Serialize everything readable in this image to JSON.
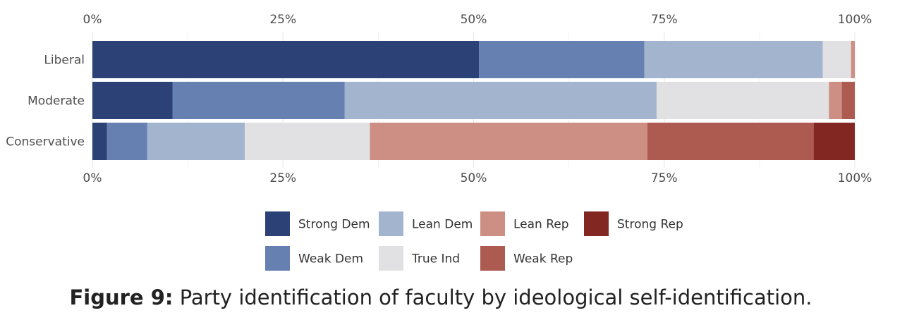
{
  "chart_data": {
    "type": "bar",
    "orientation": "horizontal",
    "stacked": true,
    "percent": true,
    "categories": [
      "Liberal",
      "Moderate",
      "Conservative"
    ],
    "series": [
      {
        "name": "Strong Dem",
        "color": "#2c4176",
        "values": [
          50.7,
          10.5,
          1.9
        ]
      },
      {
        "name": "Weak Dem",
        "color": "#6580b1",
        "values": [
          21.7,
          22.6,
          5.3
        ]
      },
      {
        "name": "Lean Dem",
        "color": "#a3b4cf",
        "values": [
          23.4,
          40.9,
          12.8
        ]
      },
      {
        "name": "True Ind",
        "color": "#e1e1e3",
        "values": [
          3.7,
          22.6,
          16.4
        ]
      },
      {
        "name": "Lean Rep",
        "color": "#cd8f84",
        "values": [
          0.5,
          1.7,
          36.4
        ]
      },
      {
        "name": "Weak Rep",
        "color": "#ad5a51",
        "values": [
          0.0,
          1.7,
          21.8
        ]
      },
      {
        "name": "Strong Rep",
        "color": "#832722",
        "values": [
          0.0,
          0.0,
          5.4
        ]
      }
    ],
    "xlim": [
      0,
      100
    ],
    "ticks": [
      "0%",
      "25%",
      "50%",
      "75%",
      "100%"
    ],
    "grid": true,
    "legend_position": "bottom"
  },
  "caption": {
    "label": "Figure 9:",
    "text": "Party identification of faculty by ideological self-identification."
  }
}
